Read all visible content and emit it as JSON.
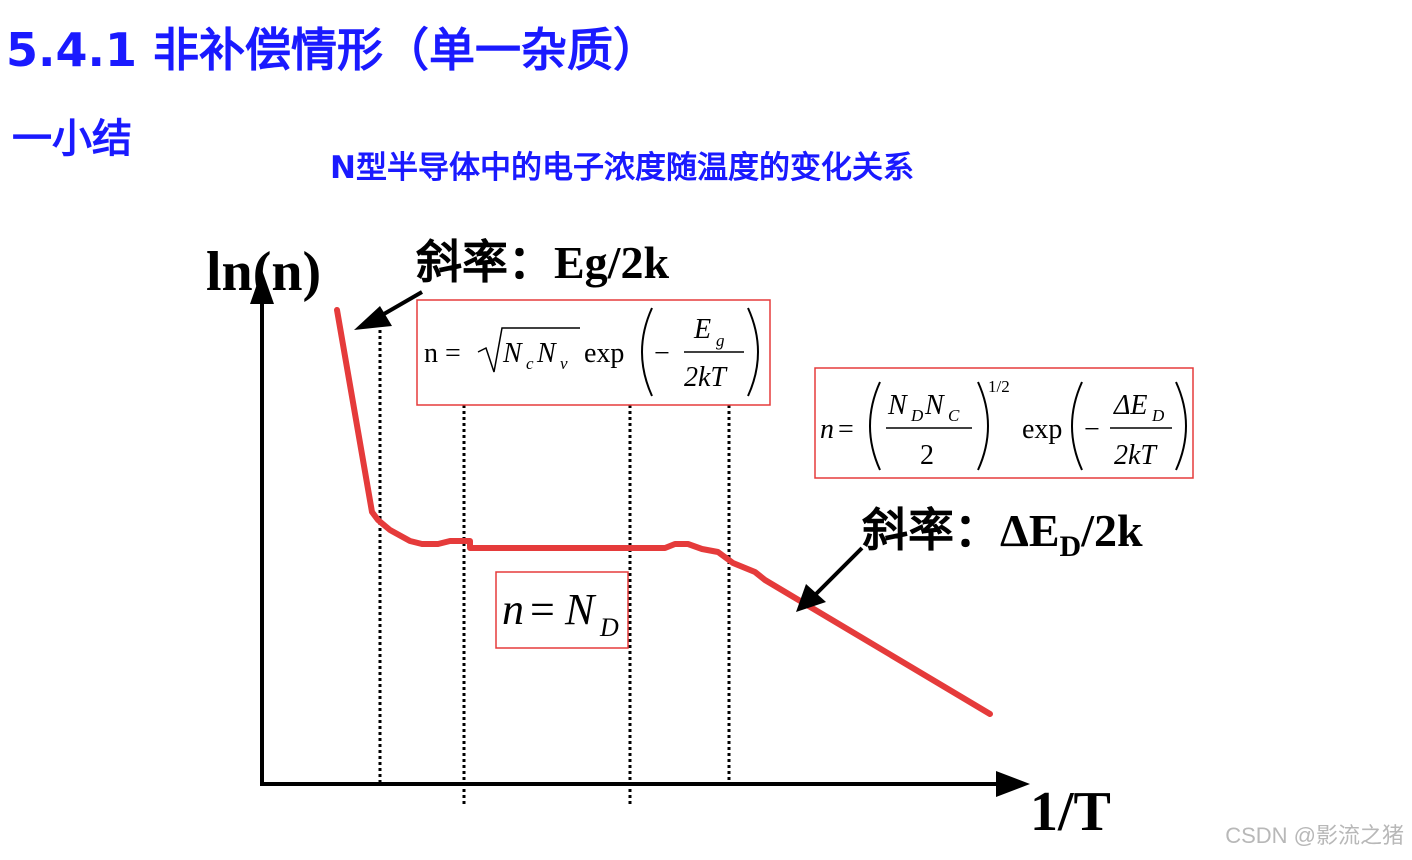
{
  "slide": {
    "title": "5.4.1 非补偿情形（单一杂质）",
    "subtitle": "一小结",
    "caption": "N型半导体中的电子浓度随温度的变化关系"
  },
  "axes": {
    "y_label": "ln(n)",
    "x_label": "1/T"
  },
  "annotations": {
    "slope_high": "斜率：Eg/2k",
    "slope_low_prefix": "斜率：ΔE",
    "slope_low_sub": "D",
    "slope_low_suffix": "/2k"
  },
  "formulas": {
    "intrinsic": "n = √(NcNv) exp(−Eg/2kT)",
    "freezeout": "n = (NDNC/2)^1/2 exp(−ΔED/2kT)",
    "saturation": "n = ND"
  },
  "watermark": "CSDN @影流之猪",
  "colors": {
    "heading": "#1a1aff",
    "curve": "#e53b3b",
    "box": "#e53b3b",
    "axis": "#000000"
  }
}
